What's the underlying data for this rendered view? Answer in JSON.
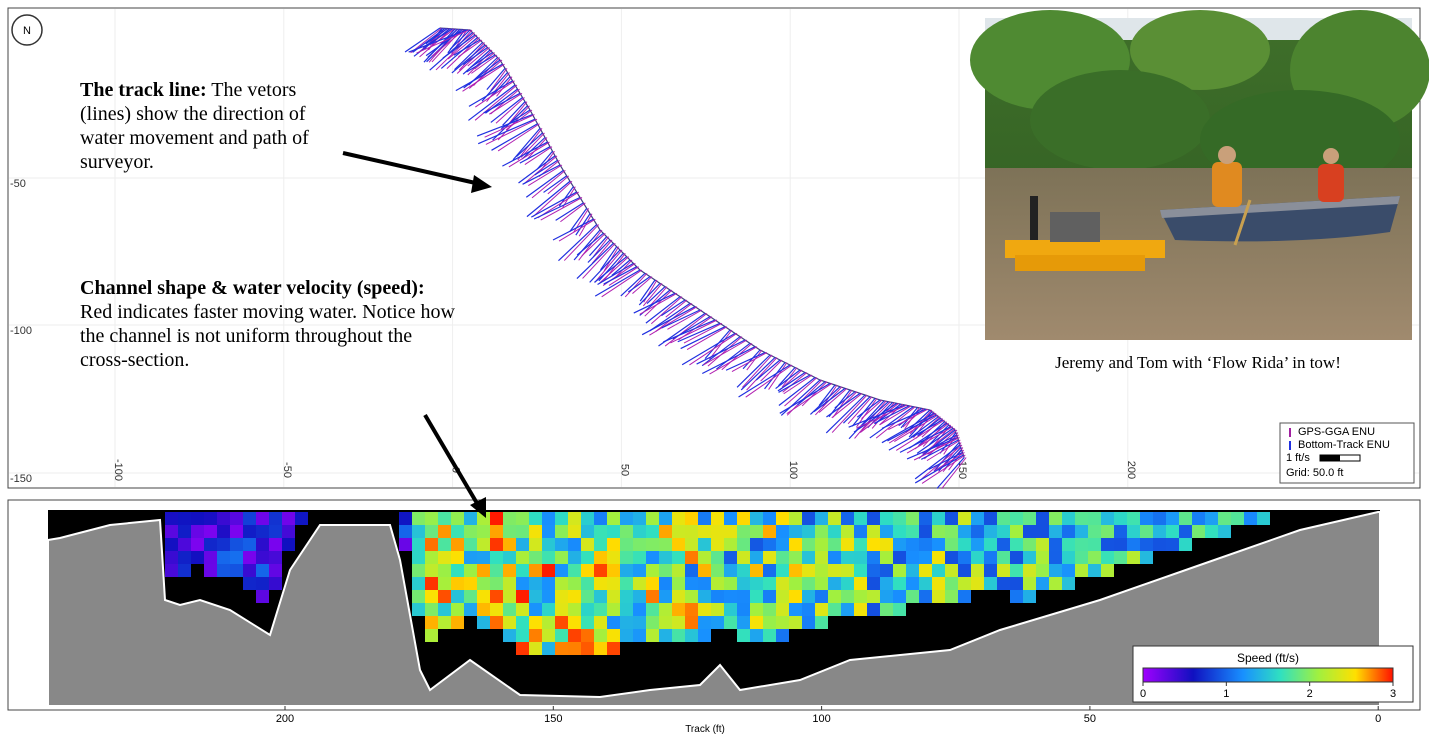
{
  "map_panel": {
    "compass": "N",
    "y_ticks": [
      "-50",
      "-100",
      "-150"
    ],
    "x_ticks": [
      "-100",
      "-50",
      "0",
      "50",
      "100",
      "150",
      "200"
    ],
    "legend": {
      "gps": "GPS-GGA ENU",
      "bottom_track": "Bottom-Track ENU",
      "scale": "1 ft/s",
      "grid": "Grid: 50.0 ft"
    }
  },
  "annotations": {
    "track": {
      "heading": "The track line:",
      "body": " The vetors (lines) show the direction of water movement and path of  surveyor."
    },
    "channel": {
      "heading": "Channel shape & water velocity (speed):",
      "body": " Red indicates faster moving water. Notice how the channel is not uniform  throughout the cross-section."
    }
  },
  "photo": {
    "caption": "Jeremy and Tom with ‘Flow Rida’ in tow!"
  },
  "section_panel": {
    "x_ticks": [
      "200",
      "150",
      "100",
      "50",
      "0"
    ],
    "x_label": "Track (ft)",
    "colorbar": {
      "title": "Speed (ft/s)",
      "ticks": [
        "0",
        "1",
        "2",
        "3"
      ]
    }
  }
}
